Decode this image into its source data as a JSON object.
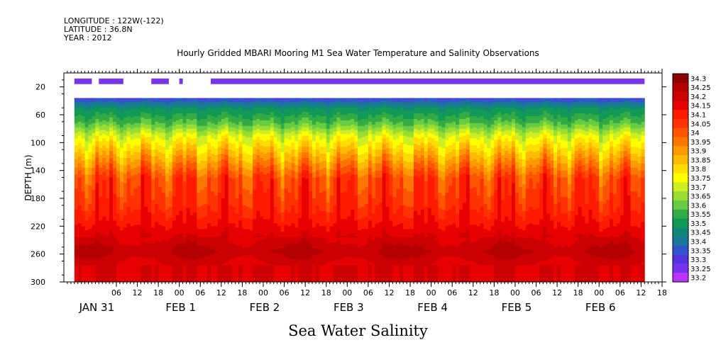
{
  "header": {
    "longitude": "LONGITUDE : 122W(-122)",
    "latitude": "LATITUDE : 36.8N",
    "year": "YEAR : 2012"
  },
  "chart_data": {
    "type": "heatmap",
    "title": "Hourly Gridded MBARI Mooring M1 Sea Water Temperature and Salinity Observations",
    "xlabel": "Sea Water Salinity",
    "ylabel": "DEPTH (m)",
    "x_unit": "hours since 2012-01-31 00:00",
    "xlim": [
      -9,
      162
    ],
    "ylim": [
      300,
      0
    ],
    "depth_ticks": [
      20,
      60,
      100,
      140,
      180,
      220,
      260,
      300
    ],
    "hour_ticks": [
      {
        "h": 6,
        "label": "06"
      },
      {
        "h": 12,
        "label": "12"
      },
      {
        "h": 18,
        "label": "18"
      },
      {
        "h": 24,
        "label": "00"
      },
      {
        "h": 30,
        "label": "06"
      },
      {
        "h": 36,
        "label": "12"
      },
      {
        "h": 42,
        "label": "18"
      },
      {
        "h": 48,
        "label": "00"
      },
      {
        "h": 54,
        "label": "06"
      },
      {
        "h": 60,
        "label": "12"
      },
      {
        "h": 66,
        "label": "18"
      },
      {
        "h": 72,
        "label": "00"
      },
      {
        "h": 78,
        "label": "06"
      },
      {
        "h": 84,
        "label": "12"
      },
      {
        "h": 90,
        "label": "18"
      },
      {
        "h": 96,
        "label": "00"
      },
      {
        "h": 102,
        "label": "06"
      },
      {
        "h": 108,
        "label": "12"
      },
      {
        "h": 114,
        "label": "18"
      },
      {
        "h": 120,
        "label": "00"
      },
      {
        "h": 126,
        "label": "06"
      },
      {
        "h": 132,
        "label": "12"
      },
      {
        "h": 138,
        "label": "18"
      },
      {
        "h": 144,
        "label": "00"
      },
      {
        "h": 150,
        "label": "06"
      },
      {
        "h": 156,
        "label": "12"
      },
      {
        "h": 162,
        "label": "18"
      }
    ],
    "date_labels": [
      {
        "h": 0,
        "label": "JAN 31"
      },
      {
        "h": 24,
        "label": "FEB  1"
      },
      {
        "h": 48,
        "label": "FEB  2"
      },
      {
        "h": 72,
        "label": "FEB  3"
      },
      {
        "h": 96,
        "label": "FEB  4"
      },
      {
        "h": 120,
        "label": "FEB  5"
      },
      {
        "h": 144,
        "label": "FEB  6"
      }
    ],
    "colorbar": {
      "levels": [
        "34.3",
        "34.25",
        "34.2",
        "34.15",
        "34.1",
        "34.05",
        "34",
        "33.95",
        "33.9",
        "33.85",
        "33.8",
        "33.75",
        "33.7",
        "33.65",
        "33.6",
        "33.55",
        "33.5",
        "33.45",
        "33.4",
        "33.35",
        "33.3",
        "33.25",
        "33.2"
      ],
      "colors": [
        "#8b0000",
        "#b30000",
        "#cc0000",
        "#e60000",
        "#ff1a00",
        "#ff3300",
        "#ff5500",
        "#ff7700",
        "#ff9900",
        "#ffbb00",
        "#ffdd00",
        "#ffff00",
        "#ccee22",
        "#99dd33",
        "#66cc44",
        "#33aa44",
        "#119955",
        "#118877",
        "#1a7799",
        "#3355cc",
        "#5533dd",
        "#7733ee",
        "#bb33ff"
      ]
    },
    "surface_hours_with_data": [
      [
        -6,
        -1
      ],
      [
        1,
        8
      ],
      [
        16,
        21
      ],
      [
        24,
        25
      ],
      [
        33,
        157
      ]
    ],
    "surface_depth": [
      8,
      16
    ],
    "profile_depth_range": [
      36,
      300
    ],
    "profile_columns_hours": [
      -6,
      157
    ],
    "typical_profile": [
      {
        "depth": 36,
        "value": 33.35
      },
      {
        "depth": 50,
        "value": 33.5
      },
      {
        "depth": 70,
        "value": 33.6
      },
      {
        "depth": 90,
        "value": 33.75
      },
      {
        "depth": 110,
        "value": 33.85
      },
      {
        "depth": 130,
        "value": 33.95
      },
      {
        "depth": 150,
        "value": 34.05
      },
      {
        "depth": 190,
        "value": 34.1
      },
      {
        "depth": 215,
        "value": 34.15
      },
      {
        "depth": 235,
        "value": 34.2
      },
      {
        "depth": 255,
        "value": 34.25
      },
      {
        "depth": 275,
        "value": 34.2
      },
      {
        "depth": 300,
        "value": 34.2
      }
    ]
  }
}
